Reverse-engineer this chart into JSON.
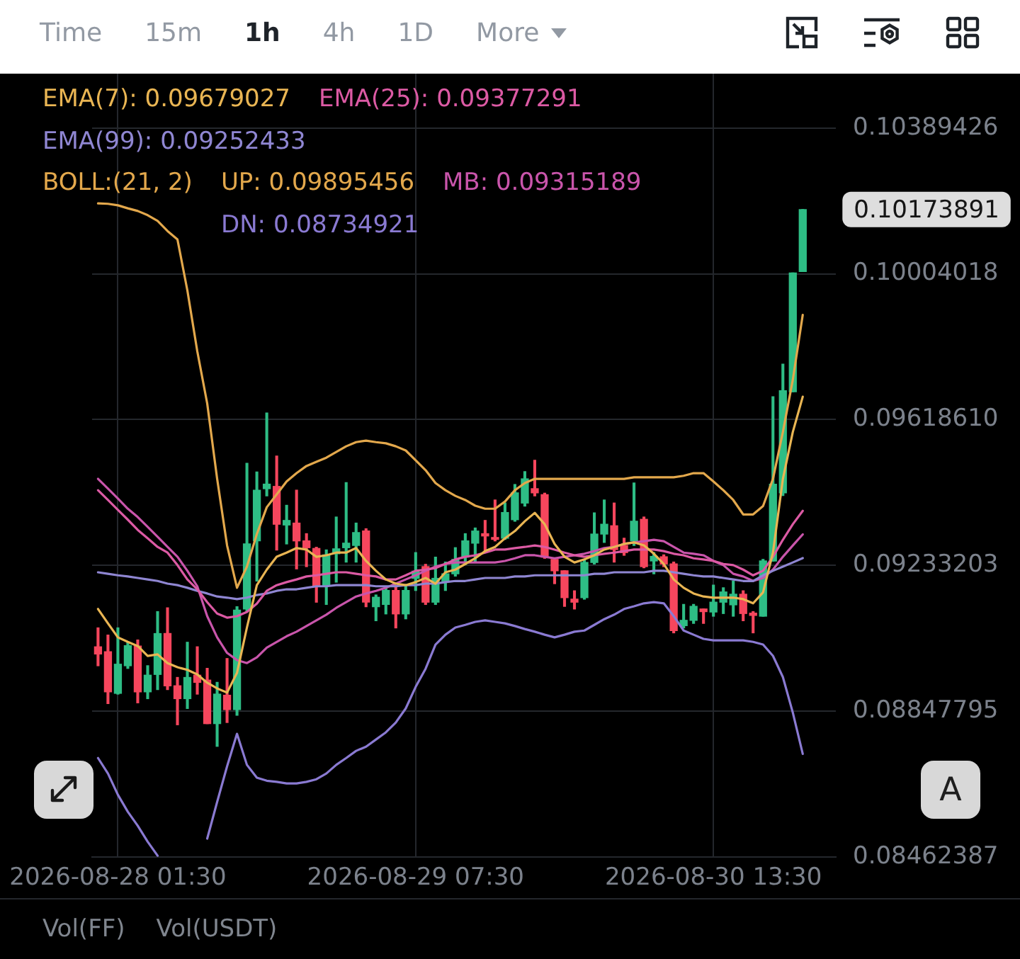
{
  "chart_data": {
    "type": "candlestick",
    "x": [
      "2026-08-27T23:30",
      "2026-08-28T00:30",
      "2026-08-28T01:30",
      "2026-08-28T02:30",
      "2026-08-28T03:30",
      "2026-08-28T04:30",
      "2026-08-28T05:30",
      "2026-08-28T06:30",
      "2026-08-28T07:30",
      "2026-08-28T08:30",
      "2026-08-28T09:30",
      "2026-08-28T10:30",
      "2026-08-28T11:30",
      "2026-08-28T12:30",
      "2026-08-28T13:30",
      "2026-08-28T14:30",
      "2026-08-28T15:30",
      "2026-08-28T16:30",
      "2026-08-28T17:30",
      "2026-08-28T18:30",
      "2026-08-28T19:30",
      "2026-08-28T20:30",
      "2026-08-28T21:30",
      "2026-08-28T22:30",
      "2026-08-28T23:30",
      "2026-08-29T00:30",
      "2026-08-29T01:30",
      "2026-08-29T02:30",
      "2026-08-29T03:30",
      "2026-08-29T04:30",
      "2026-08-29T05:30",
      "2026-08-29T06:30",
      "2026-08-29T07:30",
      "2026-08-29T08:30",
      "2026-08-29T09:30",
      "2026-08-29T10:30",
      "2026-08-29T11:30",
      "2026-08-29T12:30",
      "2026-08-29T13:30",
      "2026-08-29T14:30",
      "2026-08-29T15:30",
      "2026-08-29T16:30",
      "2026-08-29T17:30",
      "2026-08-29T18:30",
      "2026-08-29T19:30",
      "2026-08-29T20:30",
      "2026-08-29T21:30",
      "2026-08-29T22:30",
      "2026-08-29T23:30",
      "2026-08-30T00:30",
      "2026-08-30T01:30",
      "2026-08-30T02:30",
      "2026-08-30T03:30",
      "2026-08-30T04:30",
      "2026-08-30T05:30",
      "2026-08-30T06:30",
      "2026-08-30T07:30",
      "2026-08-30T08:30",
      "2026-08-30T09:30",
      "2026-08-30T10:30",
      "2026-08-30T11:30",
      "2026-08-30T12:30",
      "2026-08-30T13:30",
      "2026-08-30T14:30",
      "2026-08-30T15:30",
      "2026-08-30T16:30",
      "2026-08-30T17:30",
      "2026-08-30T18:30",
      "2026-08-30T19:30",
      "2026-08-30T20:30",
      "2026-08-30T21:30",
      "2026-08-30T22:30"
    ],
    "ohlc": [
      [
        0.09018,
        0.09068,
        0.08968,
        0.08999
      ],
      [
        0.09005,
        0.09049,
        0.08868,
        0.08899
      ],
      [
        0.08895,
        0.09068,
        0.08893,
        0.08972
      ],
      [
        0.08968,
        0.0903,
        0.08961,
        0.09021
      ],
      [
        0.0902,
        0.09036,
        0.0887,
        0.08899
      ],
      [
        0.08899,
        0.08968,
        0.08881,
        0.08943
      ],
      [
        0.08945,
        0.09111,
        0.08905,
        0.09053
      ],
      [
        0.09053,
        0.09121,
        0.08905,
        0.08915
      ],
      [
        0.08915,
        0.08937,
        0.08812,
        0.08881
      ],
      [
        0.08881,
        0.0903,
        0.08855,
        0.08937
      ],
      [
        0.08943,
        0.09018,
        0.08893,
        0.08924
      ],
      [
        0.0893,
        0.08961,
        0.08815,
        0.08815
      ],
      [
        0.08815,
        0.08924,
        0.08755,
        0.08893
      ],
      [
        0.0889,
        0.08987,
        0.08818,
        0.08852
      ],
      [
        0.08852,
        0.09124,
        0.08837,
        0.09115
      ],
      [
        0.09118,
        0.09503,
        0.0911,
        0.0929
      ],
      [
        0.09298,
        0.0948,
        0.09192,
        0.09432
      ],
      [
        0.09436,
        0.09636,
        0.09417,
        0.09448
      ],
      [
        0.09442,
        0.09522,
        0.09274,
        0.09342
      ],
      [
        0.0934,
        0.09392,
        0.0929,
        0.09352
      ],
      [
        0.09345,
        0.09432,
        0.09224,
        0.09298
      ],
      [
        0.09298,
        0.09317,
        0.0923,
        0.0928
      ],
      [
        0.09278,
        0.09281,
        0.09136,
        0.0918
      ],
      [
        0.0918,
        0.09274,
        0.0913,
        0.09261
      ],
      [
        0.09264,
        0.09361,
        0.09189,
        0.09277
      ],
      [
        0.0928,
        0.09452,
        0.09242,
        0.09292
      ],
      [
        0.09286,
        0.09345,
        0.09242,
        0.0932
      ],
      [
        0.09324,
        0.0933,
        0.09124,
        0.09136
      ],
      [
        0.09124,
        0.09155,
        0.09087,
        0.09149
      ],
      [
        0.0913,
        0.09174,
        0.09105,
        0.09167
      ],
      [
        0.09167,
        0.0918,
        0.09068,
        0.09105
      ],
      [
        0.09105,
        0.0918,
        0.09092,
        0.09167
      ],
      [
        0.09199,
        0.09267,
        0.09167,
        0.09218
      ],
      [
        0.0923,
        0.09236,
        0.0913,
        0.09136
      ],
      [
        0.09136,
        0.09255,
        0.0913,
        0.09199
      ],
      [
        0.09192,
        0.09242,
        0.09167,
        0.09211
      ],
      [
        0.09211,
        0.0928,
        0.09205,
        0.09249
      ],
      [
        0.09255,
        0.09317,
        0.09236,
        0.09298
      ],
      [
        0.09292,
        0.09332,
        0.09242,
        0.09324
      ],
      [
        0.09317,
        0.09352,
        0.09267,
        0.09311
      ],
      [
        0.09307,
        0.09406,
        0.09298,
        0.09302
      ],
      [
        0.09305,
        0.09398,
        0.09302,
        0.09373
      ],
      [
        0.09354,
        0.09447,
        0.0935,
        0.09425
      ],
      [
        0.09398,
        0.09481,
        0.0939,
        0.09462
      ],
      [
        0.09436,
        0.09511,
        0.09417,
        0.09425
      ],
      [
        0.0942,
        0.09424,
        0.09252,
        0.09255
      ],
      [
        0.09249,
        0.09249,
        0.09185,
        0.09219
      ],
      [
        0.09219,
        0.09219,
        0.09125,
        0.09148
      ],
      [
        0.09144,
        0.09166,
        0.09118,
        0.09136
      ],
      [
        0.09148,
        0.09249,
        0.09144,
        0.09241
      ],
      [
        0.09241,
        0.09372,
        0.09237,
        0.09316
      ],
      [
        0.09316,
        0.09406,
        0.09294,
        0.09342
      ],
      [
        0.09338,
        0.09398,
        0.09242,
        0.09275
      ],
      [
        0.09286,
        0.09305,
        0.0926,
        0.09267
      ],
      [
        0.09298,
        0.09451,
        0.09286,
        0.0935
      ],
      [
        0.09355,
        0.09361,
        0.09227,
        0.0923
      ],
      [
        0.09245,
        0.09267,
        0.09211,
        0.09257
      ],
      [
        0.09256,
        0.09261,
        0.0923,
        0.09237
      ],
      [
        0.09237,
        0.09242,
        0.09055,
        0.09061
      ],
      [
        0.09074,
        0.0913,
        0.09068,
        0.09088
      ],
      [
        0.09088,
        0.0913,
        0.0908,
        0.09125
      ],
      [
        0.09118,
        0.09118,
        0.0908,
        0.09111
      ],
      [
        0.0911,
        0.09181,
        0.09099,
        0.09136
      ],
      [
        0.09136,
        0.09174,
        0.09106,
        0.09163
      ],
      [
        0.09129,
        0.09192,
        0.09099,
        0.09157
      ],
      [
        0.09157,
        0.09166,
        0.09087,
        0.09106
      ],
      [
        0.09107,
        0.09111,
        0.09055,
        0.09101
      ],
      [
        0.09099,
        0.09249,
        0.09099,
        0.09245
      ],
      [
        0.09245,
        0.09679,
        0.09245,
        0.09448
      ],
      [
        0.09425,
        0.09765,
        0.09418,
        0.09695
      ],
      [
        0.09692,
        0.10006,
        0.09692,
        0.10006
      ],
      [
        0.1001,
        0.10173891,
        0.1001,
        0.10173891
      ]
    ],
    "colors": [
      "#f6465d",
      "#f6465d",
      "#2ebd85",
      "#2ebd85",
      "#f6465d",
      "#2ebd85",
      "#2ebd85",
      "#f6465d",
      "#f6465d",
      "#2ebd85",
      "#f6465d",
      "#f6465d",
      "#2ebd85",
      "#f6465d",
      "#2ebd85",
      "#2ebd85",
      "#2ebd85",
      "#2ebd85",
      "#f6465d",
      "#2ebd85",
      "#f6465d",
      "#f6465d",
      "#f6465d",
      "#2ebd85",
      "#2ebd85",
      "#2ebd85",
      "#2ebd85",
      "#f6465d",
      "#2ebd85",
      "#2ebd85",
      "#f6465d",
      "#2ebd85",
      "#2ebd85",
      "#f6465d",
      "#2ebd85",
      "#2ebd85",
      "#2ebd85",
      "#2ebd85",
      "#2ebd85",
      "#f6465d",
      "#f6465d",
      "#2ebd85",
      "#2ebd85",
      "#2ebd85",
      "#f6465d",
      "#f6465d",
      "#f6465d",
      "#f6465d",
      "#f6465d",
      "#2ebd85",
      "#2ebd85",
      "#2ebd85",
      "#f6465d",
      "#f6465d",
      "#2ebd85",
      "#f6465d",
      "#2ebd85",
      "#f6465d",
      "#f6465d",
      "#2ebd85",
      "#2ebd85",
      "#f6465d",
      "#2ebd85",
      "#2ebd85",
      "#2ebd85",
      "#f6465d",
      "#f6465d",
      "#2ebd85",
      "#2ebd85",
      "#2ebd85",
      "#2ebd85",
      "#2ebd85"
    ],
    "series": [
      {
        "name": "EMA(7): 0.09679027",
        "type": "line",
        "color": "#e9b553",
        "values": [
          0.09118,
          0.0908,
          0.09043,
          0.09031,
          0.0902,
          0.08994,
          0.08998,
          0.08975,
          0.08964,
          0.08957,
          0.08945,
          0.08923,
          0.08908,
          0.08897,
          0.08949,
          0.09069,
          0.09181,
          0.09222,
          0.09256,
          0.09267,
          0.09279,
          0.09275,
          0.09256,
          0.0926,
          0.09267,
          0.09267,
          0.09279,
          0.09245,
          0.09219,
          0.09196,
          0.09185,
          0.09181,
          0.09189,
          0.092,
          0.09185,
          0.09215,
          0.09222,
          0.09237,
          0.09252,
          0.09271,
          0.09282,
          0.09305,
          0.09324,
          0.0935,
          0.09372,
          0.09342,
          0.0929,
          0.09256,
          0.09241,
          0.09249,
          0.0926,
          0.09275,
          0.09282,
          0.0929,
          0.09294,
          0.09286,
          0.09264,
          0.09237,
          0.09196,
          0.09174,
          0.09159,
          0.09151,
          0.09148,
          0.09148,
          0.09148,
          0.09144,
          0.09133,
          0.09162,
          0.09267,
          0.09462,
          0.09586,
          0.09679027
        ]
      },
      {
        "name": "EMA(25): 0.09377291",
        "type": "line",
        "color": "#dc5aa4",
        "values": [
          0.09432,
          0.09406,
          0.0938,
          0.09354,
          0.09327,
          0.09305,
          0.09282,
          0.09267,
          0.09234,
          0.09196,
          0.0917,
          0.09136,
          0.09106,
          0.09095,
          0.09099,
          0.0911,
          0.09132,
          0.09166,
          0.09181,
          0.09189,
          0.09196,
          0.09204,
          0.09207,
          0.09211,
          0.09215,
          0.09215,
          0.09211,
          0.09207,
          0.09204,
          0.09196,
          0.09196,
          0.09207,
          0.09219,
          0.09222,
          0.09226,
          0.09237,
          0.09249,
          0.09256,
          0.0926,
          0.09267,
          0.09275,
          0.09275,
          0.09279,
          0.09282,
          0.09286,
          0.09282,
          0.09275,
          0.09267,
          0.0926,
          0.09256,
          0.0926,
          0.09264,
          0.09267,
          0.09271,
          0.09275,
          0.09275,
          0.09275,
          0.09271,
          0.09264,
          0.0926,
          0.09252,
          0.09249,
          0.09245,
          0.09237,
          0.09234,
          0.09222,
          0.09207,
          0.09219,
          0.09256,
          0.09301,
          0.09342,
          0.09377291
        ]
      },
      {
        "name": "EMA(99): 0.09252433",
        "type": "line",
        "color": "#8f86d2",
        "values": [
          0.09215,
          0.09211,
          0.09207,
          0.09204,
          0.092,
          0.09196,
          0.09192,
          0.09185,
          0.09181,
          0.09174,
          0.09166,
          0.09159,
          0.09151,
          0.09148,
          0.09144,
          0.09148,
          0.09155,
          0.09159,
          0.09166,
          0.0917,
          0.0917,
          0.09174,
          0.09178,
          0.09178,
          0.09181,
          0.09181,
          0.09181,
          0.09181,
          0.09178,
          0.09178,
          0.09178,
          0.09181,
          0.09181,
          0.09185,
          0.09185,
          0.09189,
          0.09192,
          0.09192,
          0.09196,
          0.092,
          0.092,
          0.092,
          0.09204,
          0.09204,
          0.09207,
          0.09207,
          0.09207,
          0.09207,
          0.09207,
          0.09207,
          0.09211,
          0.09211,
          0.09215,
          0.09215,
          0.09215,
          0.09215,
          0.09219,
          0.09219,
          0.09215,
          0.09211,
          0.09207,
          0.09204,
          0.09204,
          0.092,
          0.09196,
          0.09192,
          0.09192,
          0.09207,
          0.09219,
          0.0923,
          0.09241,
          0.09252433
        ]
      },
      {
        "name": "UP: 0.09895456",
        "type": "line",
        "color": "#e3a84c",
        "values": [
          0.1019,
          0.10189,
          0.10185,
          0.10177,
          0.1017,
          0.10159,
          0.10144,
          0.10117,
          0.10095,
          0.0996,
          0.09799,
          0.09661,
          0.09462,
          0.09286,
          0.09174,
          0.0923,
          0.09316,
          0.09387,
          0.09421,
          0.09455,
          0.09477,
          0.09496,
          0.09507,
          0.09518,
          0.09533,
          0.09548,
          0.09559,
          0.09563,
          0.09559,
          0.09556,
          0.09548,
          0.09537,
          0.09511,
          0.09485,
          0.09451,
          0.09432,
          0.09417,
          0.09406,
          0.09391,
          0.09383,
          0.09383,
          0.09402,
          0.09432,
          0.09451,
          0.09462,
          0.09462,
          0.09462,
          0.09462,
          0.09462,
          0.09462,
          0.09462,
          0.09462,
          0.09462,
          0.09462,
          0.09466,
          0.09466,
          0.09466,
          0.09466,
          0.09466,
          0.0947,
          0.09477,
          0.09477,
          0.09455,
          0.09432,
          0.09406,
          0.09368,
          0.09368,
          0.0939,
          0.09462,
          0.09586,
          0.09724,
          0.09895456
        ]
      },
      {
        "name": "MB: 0.09315189",
        "type": "line",
        "color": "#c955ab",
        "values": [
          0.09462,
          0.09436,
          0.0941,
          0.09383,
          0.09361,
          0.09335,
          0.09309,
          0.09282,
          0.09256,
          0.09219,
          0.09178,
          0.09099,
          0.09043,
          0.09002,
          0.08983,
          0.08975,
          0.0899,
          0.09016,
          0.09031,
          0.09046,
          0.09058,
          0.09073,
          0.09088,
          0.09103,
          0.09121,
          0.09136,
          0.09151,
          0.09159,
          0.09166,
          0.09174,
          0.09185,
          0.09196,
          0.09207,
          0.09219,
          0.0923,
          0.09237,
          0.09241,
          0.09241,
          0.09241,
          0.09241,
          0.09241,
          0.09245,
          0.09252,
          0.0926,
          0.0926,
          0.09256,
          0.09252,
          0.09256,
          0.0926,
          0.09264,
          0.09271,
          0.09279,
          0.09282,
          0.0929,
          0.09294,
          0.09297,
          0.09301,
          0.09297,
          0.09282,
          0.09267,
          0.09264,
          0.0926,
          0.09245,
          0.09234,
          0.09211,
          0.09204,
          0.09192,
          0.092,
          0.09222,
          0.09256,
          0.09286,
          0.09315189
        ]
      },
      {
        "name": "DN: 0.08734921",
        "type": "line",
        "color": "#8a7ad2",
        "values": [
          0.08724,
          0.08683,
          0.08627,
          0.08582,
          0.08545,
          0.08503,
          0.08466,
          null,
          null,
          null,
          null,
          0.08511,
          0.08608,
          0.08702,
          0.08788,
          0.08706,
          0.08672,
          0.08664,
          0.08661,
          0.08657,
          0.08657,
          0.08661,
          0.08668,
          0.08683,
          0.08706,
          0.08724,
          0.08743,
          0.08754,
          0.08773,
          0.08792,
          0.08818,
          0.08855,
          0.08912,
          0.0896,
          0.09024,
          0.0905,
          0.09069,
          0.09076,
          0.09084,
          0.09088,
          0.09084,
          0.0908,
          0.09073,
          0.09065,
          0.09058,
          0.0905,
          0.09043,
          0.0905,
          0.09058,
          0.09061,
          0.09076,
          0.09091,
          0.09103,
          0.09118,
          0.09125,
          0.09133,
          0.09136,
          0.09133,
          0.09099,
          0.09061,
          0.0905,
          0.09039,
          0.09035,
          0.09035,
          0.09035,
          0.09035,
          0.09031,
          0.09024,
          0.08994,
          0.08938,
          0.08844,
          0.08734921
        ]
      }
    ],
    "xlim": [
      "2026-08-27T22:54",
      "2026-08-31T01:50"
    ],
    "xticks": [
      {
        "value": "2026-08-28T01:30",
        "label": "2026-08-28 01:30"
      },
      {
        "value": "2026-08-29T07:30",
        "label": "2026-08-29 07:30"
      },
      {
        "value": "2026-08-30T13:30",
        "label": "2026-08-30 13:30"
      }
    ],
    "ylim": [
      0.08462387,
      0.10533
    ],
    "yticks": [
      0.08462387,
      0.08847795,
      0.09233203,
      {
        "value": 0.0961861,
        "label": "0.09618610"
      },
      0.10004018,
      0.10389426
    ],
    "grid": true,
    "legend": "top left",
    "marker": "none",
    "annotations": [
      "Time",
      "15m",
      "1h",
      "4h",
      "1D",
      "More",
      "BOLL:(21, 2)",
      {
        "text": "0.10173891",
        "x": "2026-08-30T22:30",
        "y": 0.10173891
      },
      "A",
      "Vol(FF)",
      "Vol(USDT)"
    ]
  }
}
